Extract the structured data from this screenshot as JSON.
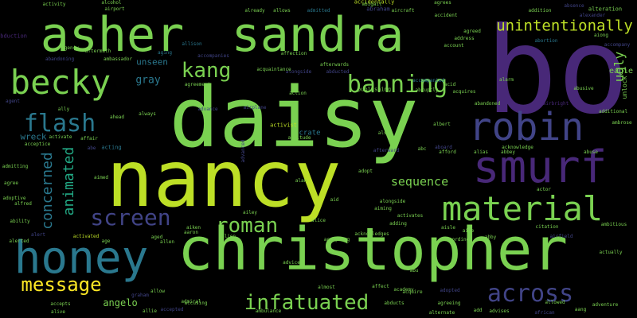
{
  "words": [
    {
      "text": "bo",
      "color": "#482878"
    },
    {
      "text": "daisy",
      "color": "#7ad151"
    },
    {
      "text": "nancy",
      "color": "#bddf26"
    },
    {
      "text": "christopher",
      "color": "#7ad151"
    },
    {
      "text": "asher",
      "color": "#7ad151"
    },
    {
      "text": "sandra",
      "color": "#7ad151"
    },
    {
      "text": "smurf",
      "color": "#482878"
    },
    {
      "text": "honey",
      "color": "#2a788e"
    },
    {
      "text": "robin",
      "color": "#414487"
    },
    {
      "text": "becky",
      "color": "#7ad151"
    },
    {
      "text": "material",
      "color": "#7ad151"
    },
    {
      "text": "banning",
      "color": "#7ad151"
    },
    {
      "text": "flash",
      "color": "#2a788e"
    },
    {
      "text": "screen",
      "color": "#414487"
    },
    {
      "text": "roman",
      "color": "#7ad151"
    },
    {
      "text": "kang",
      "color": "#7ad151"
    },
    {
      "text": "unintentionally",
      "color": "#bddf26"
    },
    {
      "text": "message",
      "color": "#fde725"
    },
    {
      "text": "infatuated",
      "color": "#7ad151"
    },
    {
      "text": "across",
      "color": "#414487"
    },
    {
      "text": "sequence",
      "color": "#7ad151"
    },
    {
      "text": "concerned",
      "color": "#2a788e"
    },
    {
      "text": "animated",
      "color": "#22a884"
    },
    {
      "text": "ugly",
      "color": "#7ad151"
    },
    {
      "text": "gray",
      "color": "#2a788e"
    },
    {
      "text": "unseen",
      "color": "#2a788e"
    },
    {
      "text": "wreck",
      "color": "#2a788e"
    },
    {
      "text": "angelo",
      "color": "#7ad151"
    },
    {
      "text": "eagle",
      "color": "#7ad151"
    },
    {
      "text": "unlock",
      "color": "#7ad151"
    },
    {
      "text": "acting",
      "color": "#2a788e"
    },
    {
      "text": "activist",
      "color": "#bddf26"
    },
    {
      "text": "alteration",
      "color": "#7ad151"
    },
    {
      "text": "abduction",
      "color": "#482878"
    },
    {
      "text": "accidentally",
      "color": "#bddf26"
    },
    {
      "text": "abraham",
      "color": "#414487"
    },
    {
      "text": "already",
      "color": "#7ad151"
    },
    {
      "text": "allows",
      "color": "#7ad151"
    },
    {
      "text": "admitted",
      "color": "#2a788e"
    },
    {
      "text": "aircraft",
      "color": "#7ad151"
    },
    {
      "text": "agrees",
      "color": "#7ad151"
    },
    {
      "text": "addition",
      "color": "#7ad151"
    },
    {
      "text": "absence",
      "color": "#414487"
    },
    {
      "text": "accompany",
      "color": "#414487"
    },
    {
      "text": "abortion",
      "color": "#2a788e"
    },
    {
      "text": "agreed",
      "color": "#7ad151"
    },
    {
      "text": "aging",
      "color": "#2a788e"
    },
    {
      "text": "alongside",
      "color": "#414487"
    },
    {
      "text": "abducted",
      "color": "#414487"
    },
    {
      "text": "accompanied",
      "color": "#2a788e"
    },
    {
      "text": "accompanies",
      "color": "#414487"
    },
    {
      "text": "allison",
      "color": "#2a788e"
    },
    {
      "text": "agreement",
      "color": "#7ad151"
    },
    {
      "text": "affection",
      "color": "#7ad151"
    },
    {
      "text": "aftermath",
      "color": "#7ad151"
    },
    {
      "text": "ambassador",
      "color": "#7ad151"
    },
    {
      "text": "abandoning",
      "color": "#414487"
    },
    {
      "text": "acquaintance",
      "color": "#7ad151"
    },
    {
      "text": "afterwards",
      "color": "#7ad151"
    },
    {
      "text": "abruptly",
      "color": "#7ad151"
    },
    {
      "text": "acquires",
      "color": "#7ad151"
    },
    {
      "text": "publishing",
      "color": "#7ad151"
    },
    {
      "text": "action",
      "color": "#7ad151"
    },
    {
      "text": "advance",
      "color": "#414487"
    },
    {
      "text": "abandoned",
      "color": "#7ad151"
    },
    {
      "text": "airbright",
      "color": "#482878"
    },
    {
      "text": "alarm",
      "color": "#7ad151"
    },
    {
      "text": "abusive",
      "color": "#7ad151"
    },
    {
      "text": "additional",
      "color": "#7ad151"
    },
    {
      "text": "ambrose",
      "color": "#7ad151"
    },
    {
      "text": "acknowledge",
      "color": "#7ad151"
    },
    {
      "text": "abuse",
      "color": "#7ad151"
    },
    {
      "text": "abbey",
      "color": "#7ad151"
    },
    {
      "text": "alias",
      "color": "#7ad151"
    },
    {
      "text": "aboard",
      "color": "#414487"
    },
    {
      "text": "afford",
      "color": "#7ad151"
    },
    {
      "text": "albert",
      "color": "#7ad151"
    },
    {
      "text": "also",
      "color": "#7ad151"
    },
    {
      "text": "attitude",
      "color": "#7ad151"
    },
    {
      "text": "crate",
      "color": "#2a788e"
    },
    {
      "text": "afterward",
      "color": "#414487"
    },
    {
      "text": "abe",
      "color": "#414487"
    },
    {
      "text": "ahead",
      "color": "#7ad151"
    },
    {
      "text": "always",
      "color": "#7ad151"
    },
    {
      "text": "affair",
      "color": "#7ad151"
    },
    {
      "text": "activate",
      "color": "#7ad151"
    },
    {
      "text": "acceptice",
      "color": "#7ad151"
    },
    {
      "text": "adopt",
      "color": "#7ad151"
    },
    {
      "text": "aiming",
      "color": "#7ad151"
    },
    {
      "text": "alongside",
      "color": "#7ad151"
    },
    {
      "text": "activates",
      "color": "#7ad151"
    },
    {
      "text": "adding",
      "color": "#7ad151"
    },
    {
      "text": "acknowledges",
      "color": "#7ad151"
    },
    {
      "text": "accepting",
      "color": "#7ad151"
    },
    {
      "text": "according",
      "color": "#7ad151"
    },
    {
      "text": "abby",
      "color": "#7ad151"
    },
    {
      "text": "citation",
      "color": "#7ad151"
    },
    {
      "text": "airfield",
      "color": "#414487"
    },
    {
      "text": "ambitious",
      "color": "#7ad151"
    },
    {
      "text": "actually",
      "color": "#7ad151"
    },
    {
      "text": "adventure",
      "color": "#7ad151"
    },
    {
      "text": "alternate",
      "color": "#7ad151"
    },
    {
      "text": "african",
      "color": "#414487"
    },
    {
      "text": "allowed",
      "color": "#7ad151"
    },
    {
      "text": "advises",
      "color": "#7ad151"
    },
    {
      "text": "agreeing",
      "color": "#7ad151"
    },
    {
      "text": "abducts",
      "color": "#7ad151"
    },
    {
      "text": "acquire",
      "color": "#7ad151"
    },
    {
      "text": "adopted",
      "color": "#414487"
    },
    {
      "text": "almost",
      "color": "#7ad151"
    },
    {
      "text": "ambulance",
      "color": "#7ad151"
    },
    {
      "text": "accepted",
      "color": "#414487"
    },
    {
      "text": "admiral",
      "color": "#7ad151"
    },
    {
      "text": "accepts",
      "color": "#7ad151"
    },
    {
      "text": "alive",
      "color": "#7ad151"
    },
    {
      "text": "allow",
      "color": "#7ad151"
    },
    {
      "text": "graham",
      "color": "#414487"
    },
    {
      "text": "aaron",
      "color": "#7ad151"
    },
    {
      "text": "aiken",
      "color": "#7ad151"
    },
    {
      "text": "alien",
      "color": "#7ad151"
    },
    {
      "text": "advice",
      "color": "#7ad151"
    },
    {
      "text": "activated",
      "color": "#bddf26"
    },
    {
      "text": "age",
      "color": "#7ad151"
    },
    {
      "text": "aged",
      "color": "#7ad151"
    },
    {
      "text": "ailey",
      "color": "#7ad151"
    },
    {
      "text": "alert",
      "color": "#414487"
    },
    {
      "text": "ability",
      "color": "#7ad151"
    },
    {
      "text": "alfred",
      "color": "#7ad151"
    },
    {
      "text": "adoptive",
      "color": "#7ad151"
    },
    {
      "text": "admitting",
      "color": "#7ad151"
    },
    {
      "text": "agree",
      "color": "#7ad151"
    },
    {
      "text": "alerted",
      "color": "#7ad151"
    },
    {
      "text": "aimed",
      "color": "#7ad151"
    },
    {
      "text": "agent",
      "color": "#414487"
    },
    {
      "text": "agency",
      "color": "#7ad151"
    },
    {
      "text": "alcohol",
      "color": "#7ad151"
    },
    {
      "text": "airport",
      "color": "#7ad151"
    },
    {
      "text": "activity",
      "color": "#7ad151"
    },
    {
      "text": "accident",
      "color": "#7ad151"
    },
    {
      "text": "address",
      "color": "#7ad151"
    },
    {
      "text": "account",
      "color": "#7ad151"
    },
    {
      "text": "abigail",
      "color": "#7ad151"
    },
    {
      "text": "alexander",
      "color": "#414487"
    },
    {
      "text": "aiong",
      "color": "#7ad151"
    },
    {
      "text": "airplane",
      "color": "#414487"
    },
    {
      "text": "acid",
      "color": "#7ad151"
    },
    {
      "text": "ally",
      "color": "#7ad151"
    },
    {
      "text": "abu",
      "color": "#7ad151"
    },
    {
      "text": "affect",
      "color": "#7ad151"
    },
    {
      "text": "aisle",
      "color": "#7ad151"
    },
    {
      "text": "alan",
      "color": "#7ad151"
    },
    {
      "text": "aid",
      "color": "#7ad151"
    },
    {
      "text": "alice",
      "color": "#7ad151"
    },
    {
      "text": "academy",
      "color": "#7ad151"
    },
    {
      "text": "allie",
      "color": "#7ad151"
    },
    {
      "text": "add",
      "color": "#7ad151"
    },
    {
      "text": "advanced",
      "color": "#414487"
    },
    {
      "text": "accusing",
      "color": "#7ad151"
    },
    {
      "text": "allen",
      "color": "#7ad151"
    },
    {
      "text": "aang",
      "color": "#7ad151"
    },
    {
      "text": "actor",
      "color": "#7ad151"
    },
    {
      "text": "abc",
      "color": "#7ad151"
    },
    {
      "text": "aide",
      "color": "#7ad151"
    }
  ]
}
